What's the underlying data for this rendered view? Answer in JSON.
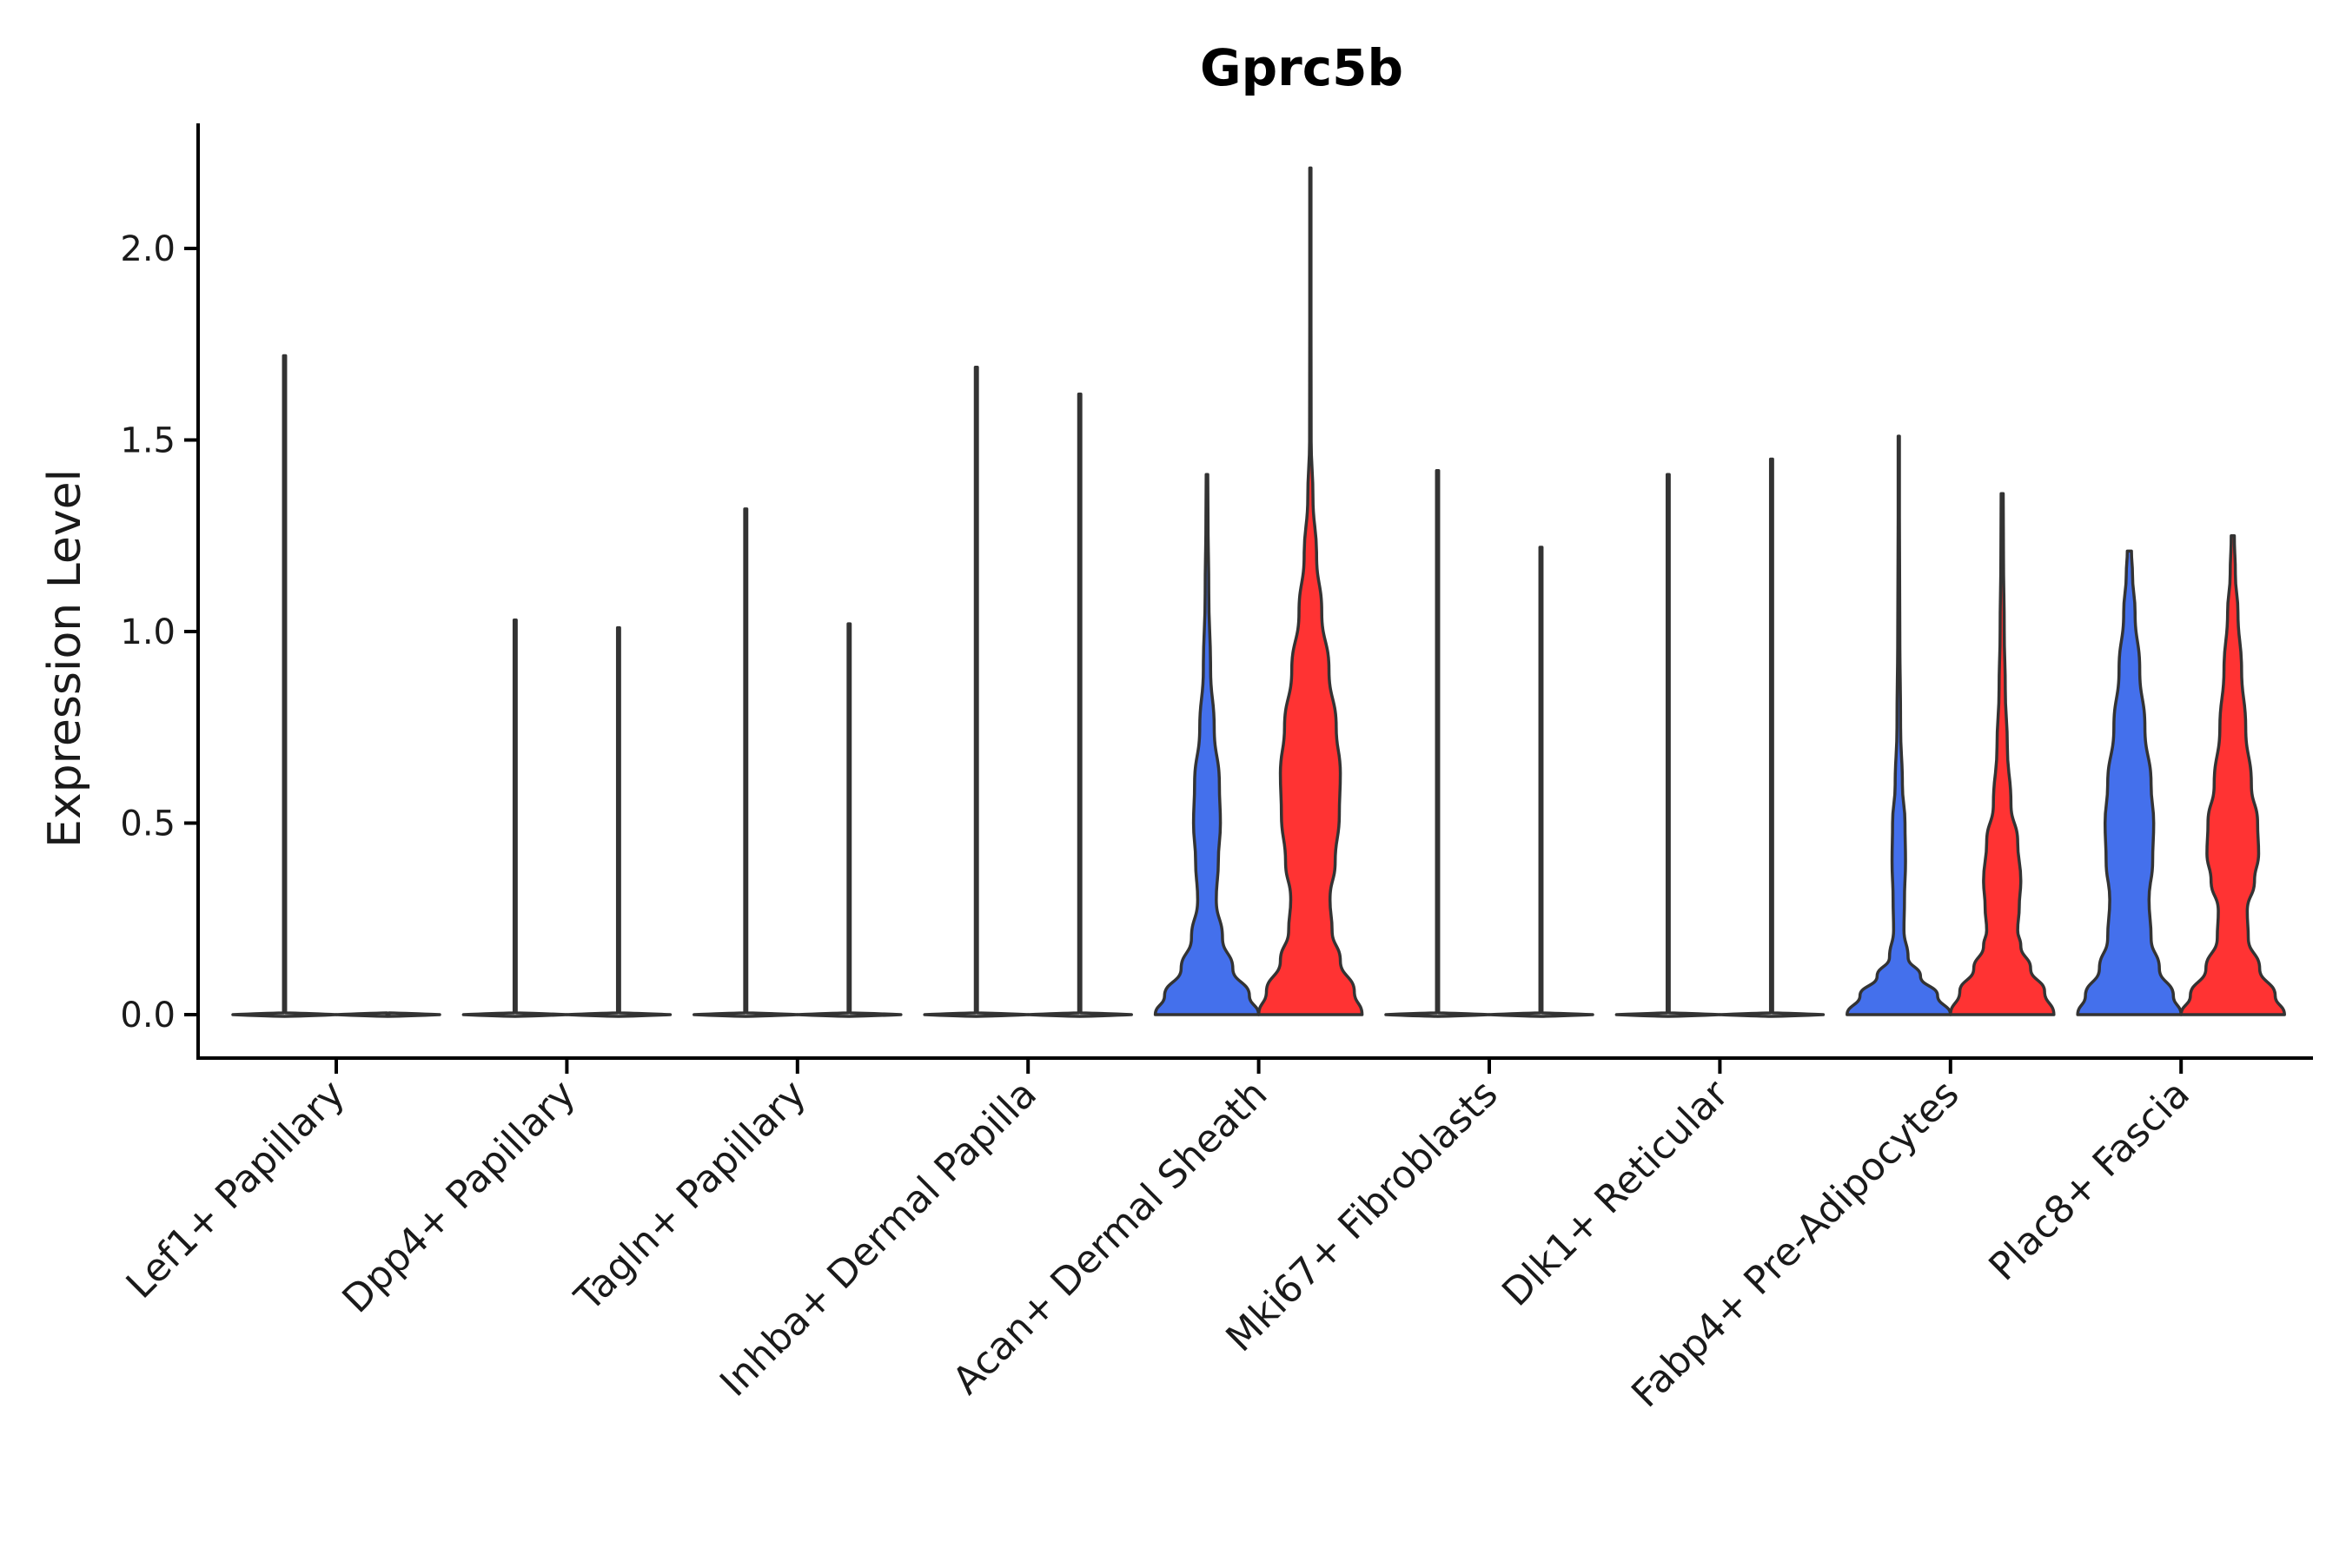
{
  "chart_data": {
    "type": "violin",
    "title": "Gprc5b",
    "xlabel": "",
    "ylabel": "Expression Level",
    "ylim": [
      -0.11,
      2.32
    ],
    "yticks": [
      0.0,
      0.5,
      1.0,
      1.5,
      2.0
    ],
    "ytick_labels": [
      "0.0",
      "0.5",
      "1.0",
      "1.5",
      "2.0"
    ],
    "grid": false,
    "legend": "none",
    "colors": {
      "group1": "#4470EC",
      "group2": "#FF3333",
      "flat": "#ffffff",
      "outline": "#333333"
    },
    "categories": [
      "Lef1+ Papillary",
      "Dpp4+ Papillary",
      "Tagln+ Papillary",
      "Inhba+ Dermal Papilla",
      "Acan+ Dermal Sheath",
      "Mki67+ Fibroblasts",
      "Dlk1+ Reticular",
      "Fabp4+ Pre-Adipocytes",
      "Plac8+ Fascia"
    ],
    "violins": [
      {
        "category": "Lef1+ Papillary",
        "group": 1,
        "max": 1.72,
        "fill": "flat",
        "profile": [
          [
            0.0,
            0.5
          ]
        ]
      },
      {
        "category": "Lef1+ Papillary",
        "group": 2,
        "max": 0.0,
        "fill": "flat",
        "profile": [
          [
            0.0,
            0.5
          ]
        ]
      },
      {
        "category": "Dpp4+ Papillary",
        "group": 1,
        "max": 1.03,
        "fill": "flat",
        "profile": [
          [
            0.0,
            0.5
          ]
        ]
      },
      {
        "category": "Dpp4+ Papillary",
        "group": 2,
        "max": 1.01,
        "fill": "flat",
        "profile": [
          [
            0.0,
            0.5
          ]
        ]
      },
      {
        "category": "Tagln+ Papillary",
        "group": 1,
        "max": 1.32,
        "fill": "flat",
        "profile": [
          [
            0.0,
            0.5
          ]
        ]
      },
      {
        "category": "Tagln+ Papillary",
        "group": 2,
        "max": 1.02,
        "fill": "flat",
        "profile": [
          [
            0.0,
            0.5
          ]
        ]
      },
      {
        "category": "Inhba+ Dermal Papilla",
        "group": 1,
        "max": 1.69,
        "fill": "flat",
        "profile": [
          [
            0.0,
            0.5
          ]
        ]
      },
      {
        "category": "Inhba+ Dermal Papilla",
        "group": 2,
        "max": 1.62,
        "fill": "flat",
        "profile": [
          [
            0.0,
            0.5
          ]
        ]
      },
      {
        "category": "Acan+ Dermal Sheath",
        "group": 1,
        "max": 1.41,
        "fill": "group1",
        "profile": [
          [
            0.0,
            1.0
          ],
          [
            0.05,
            0.82
          ],
          [
            0.12,
            0.5
          ],
          [
            0.2,
            0.3
          ],
          [
            0.3,
            0.18
          ],
          [
            0.4,
            0.22
          ],
          [
            0.5,
            0.26
          ],
          [
            0.6,
            0.24
          ],
          [
            0.75,
            0.14
          ],
          [
            0.9,
            0.07
          ],
          [
            1.1,
            0.035
          ],
          [
            1.3,
            0.02
          ],
          [
            1.41,
            0.015
          ]
        ]
      },
      {
        "category": "Acan+ Dermal Sheath",
        "group": 2,
        "max": 2.21,
        "fill": "group2",
        "profile": [
          [
            0.0,
            1.0
          ],
          [
            0.06,
            0.85
          ],
          [
            0.14,
            0.58
          ],
          [
            0.22,
            0.42
          ],
          [
            0.3,
            0.38
          ],
          [
            0.4,
            0.48
          ],
          [
            0.52,
            0.56
          ],
          [
            0.63,
            0.58
          ],
          [
            0.75,
            0.5
          ],
          [
            0.9,
            0.36
          ],
          [
            1.05,
            0.22
          ],
          [
            1.2,
            0.12
          ],
          [
            1.35,
            0.05
          ],
          [
            1.5,
            0.015
          ],
          [
            1.8,
            0.008
          ],
          [
            2.21,
            0.006
          ]
        ]
      },
      {
        "category": "Mki67+ Fibroblasts",
        "group": 1,
        "max": 1.42,
        "fill": "flat",
        "profile": [
          [
            0.0,
            0.5
          ]
        ]
      },
      {
        "category": "Mki67+ Fibroblasts",
        "group": 2,
        "max": 1.22,
        "fill": "flat",
        "profile": [
          [
            0.0,
            0.5
          ]
        ]
      },
      {
        "category": "Dlk1+ Reticular",
        "group": 1,
        "max": 1.41,
        "fill": "flat",
        "profile": [
          [
            0.0,
            0.5
          ]
        ]
      },
      {
        "category": "Dlk1+ Reticular",
        "group": 2,
        "max": 1.45,
        "fill": "flat",
        "profile": [
          [
            0.0,
            0.5
          ]
        ]
      },
      {
        "category": "Fabp4+ Pre-Adipocytes",
        "group": 1,
        "max": 1.51,
        "fill": "group1",
        "profile": [
          [
            0.0,
            1.0
          ],
          [
            0.05,
            0.75
          ],
          [
            0.1,
            0.42
          ],
          [
            0.15,
            0.18
          ],
          [
            0.22,
            0.1
          ],
          [
            0.3,
            0.11
          ],
          [
            0.4,
            0.13
          ],
          [
            0.5,
            0.12
          ],
          [
            0.6,
            0.07
          ],
          [
            0.75,
            0.035
          ],
          [
            1.0,
            0.02
          ],
          [
            1.3,
            0.012
          ],
          [
            1.51,
            0.01
          ]
        ]
      },
      {
        "category": "Fabp4+ Pre-Adipocytes",
        "group": 2,
        "max": 1.36,
        "fill": "group2",
        "profile": [
          [
            0.0,
            1.0
          ],
          [
            0.06,
            0.82
          ],
          [
            0.12,
            0.55
          ],
          [
            0.18,
            0.36
          ],
          [
            0.22,
            0.3
          ],
          [
            0.28,
            0.33
          ],
          [
            0.35,
            0.36
          ],
          [
            0.45,
            0.3
          ],
          [
            0.55,
            0.17
          ],
          [
            0.7,
            0.1
          ],
          [
            0.85,
            0.06
          ],
          [
            1.0,
            0.04
          ],
          [
            1.2,
            0.025
          ],
          [
            1.36,
            0.02
          ]
        ]
      },
      {
        "category": "Plac8+ Fascia",
        "group": 1,
        "max": 1.21,
        "fill": "group1",
        "profile": [
          [
            0.0,
            1.0
          ],
          [
            0.05,
            0.85
          ],
          [
            0.12,
            0.58
          ],
          [
            0.2,
            0.42
          ],
          [
            0.3,
            0.38
          ],
          [
            0.4,
            0.45
          ],
          [
            0.5,
            0.47
          ],
          [
            0.6,
            0.42
          ],
          [
            0.75,
            0.3
          ],
          [
            0.9,
            0.2
          ],
          [
            1.05,
            0.11
          ],
          [
            1.15,
            0.06
          ],
          [
            1.21,
            0.04
          ]
        ]
      },
      {
        "category": "Plac8+ Fascia",
        "group": 2,
        "max": 1.25,
        "fill": "group2",
        "profile": [
          [
            0.0,
            1.0
          ],
          [
            0.05,
            0.82
          ],
          [
            0.12,
            0.52
          ],
          [
            0.2,
            0.3
          ],
          [
            0.27,
            0.28
          ],
          [
            0.35,
            0.42
          ],
          [
            0.42,
            0.5
          ],
          [
            0.5,
            0.48
          ],
          [
            0.6,
            0.36
          ],
          [
            0.75,
            0.25
          ],
          [
            0.9,
            0.17
          ],
          [
            1.05,
            0.1
          ],
          [
            1.15,
            0.05
          ],
          [
            1.25,
            0.03
          ]
        ]
      }
    ]
  }
}
